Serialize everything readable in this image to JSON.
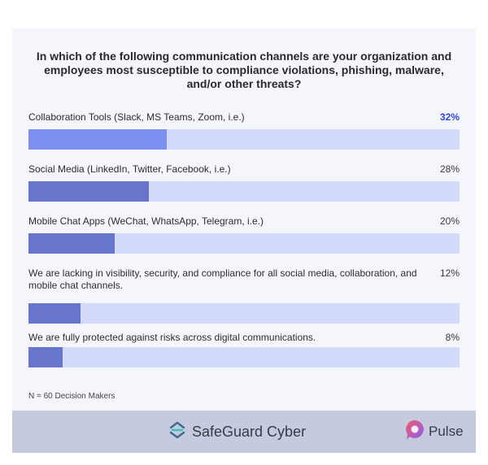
{
  "colors": {
    "card_background": "#f4f6fb",
    "bar_track": "#d3d9f8",
    "bar_fill": "#6775cc",
    "bar_fill_highlight": "#7d8ff0",
    "highlight_text": "#2f47d6",
    "footer_background": "#c6cade",
    "safeguard_icon": "#3c6a92",
    "safeguard_icon_accent": "#36bfc3",
    "pulse_icon_from": "#f05a6a",
    "pulse_icon_to": "#8b5cf6"
  },
  "chart_data": {
    "type": "bar",
    "orientation": "horizontal",
    "title": "In which of the following communication channels are your organization and employees most susceptible to compliance violations, phishing, malware, and/or other threats?",
    "categories": [
      "Collaboration Tools (Slack, MS Teams, Zoom, i.e.)",
      "Social Media (LinkedIn, Twitter, Facebook, i.e.)",
      "Mobile Chat Apps (WeChat, WhatsApp, Telegram, i.e.)",
      "We are lacking in visibility, security, and compliance for all social media, collaboration, and mobile chat channels.",
      "We are fully protected against risks across digital communications."
    ],
    "values": [
      32,
      28,
      20,
      12,
      8
    ],
    "value_labels": [
      "32%",
      "28%",
      "20%",
      "12%",
      "8%"
    ],
    "highlighted_index": 0,
    "xlim": [
      0,
      100
    ],
    "note": "N = 60 Decision Makers"
  },
  "footer": {
    "icon": "safeguard-logo-icon",
    "brand": "SafeGuard Cyber",
    "partner_icon": "pulse-logo-icon",
    "partner": "Pulse"
  }
}
